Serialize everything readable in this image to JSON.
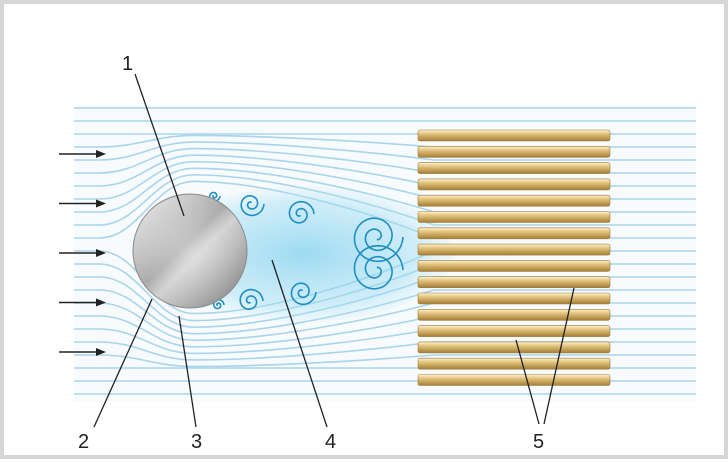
{
  "diagram": {
    "colors": {
      "streamline": "#a9d4ea",
      "wake": "#5fc0e6",
      "vortex": "#1e8fc0",
      "rod": "#d8b672",
      "cylinder": "#b8b8b8",
      "arrow": "#222222",
      "frame": "#d6d6d6"
    },
    "labels": [
      {
        "id": "1",
        "text": "1"
      },
      {
        "id": "2",
        "text": "2"
      },
      {
        "id": "3",
        "text": "3"
      },
      {
        "id": "4",
        "text": "4"
      },
      {
        "id": "5",
        "text": "5"
      }
    ],
    "flow_arrow_count": 5,
    "rod_count": 16
  }
}
